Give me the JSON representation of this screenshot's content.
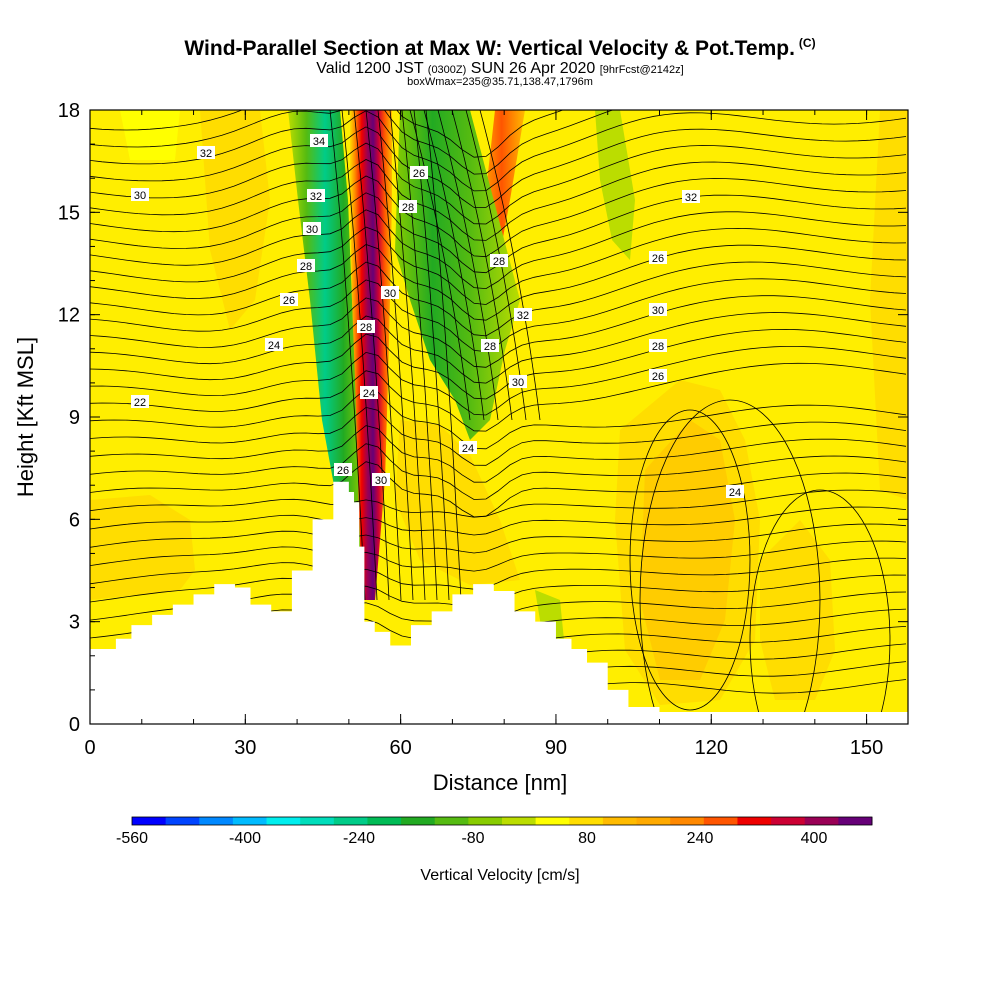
{
  "chart_data": {
    "type": "heatmap",
    "title": "Wind-Parallel Section at Max W: Vertical Velocity & Pot.Temp.",
    "title_mark": "(C)",
    "subtitle_main": "Valid 1200 JST",
    "subtitle_utc": "(0300Z)",
    "subtitle_date": "SUN 26 Apr 2020",
    "subtitle_fcst": "[9hrFcst@2142z]",
    "subtitle2": "boxWmax=235@35.71,138.47,1796m",
    "xlabel": "Distance [nm]",
    "ylabel": "Height [Kft MSL]",
    "xlim": [
      0,
      158
    ],
    "ylim": [
      0,
      18
    ],
    "xticks": [
      "0",
      "30",
      "60",
      "90",
      "120",
      "150"
    ],
    "yticks": [
      "0",
      "3",
      "6",
      "9",
      "12",
      "15",
      "18"
    ],
    "colorbar": {
      "label": "Vertical Velocity [cm/s]",
      "tick_labels": [
        "-560",
        "-400",
        "-240",
        "-80",
        "80",
        "240",
        "400"
      ],
      "colors": [
        "#0000ff",
        "#0044ff",
        "#0088ff",
        "#00bbff",
        "#00eeee",
        "#00ddbb",
        "#00cc88",
        "#00bb55",
        "#22aa22",
        "#55bb11",
        "#88cc00",
        "#bbdd00",
        "#ffff00",
        "#ffdd00",
        "#ffbb00",
        "#ffaa00",
        "#ff8800",
        "#ff5500",
        "#ee0000",
        "#cc0033",
        "#990055",
        "#660077"
      ]
    },
    "theta_contour_labels": [
      "32",
      "30",
      "22",
      "24",
      "26",
      "28",
      "34",
      "32",
      "30",
      "28",
      "26",
      "30",
      "28",
      "24",
      "26",
      "30",
      "28",
      "32",
      "28",
      "30",
      "24",
      "26",
      "32",
      "30",
      "28",
      "26",
      "24",
      "22"
    ],
    "terrain_kft": [
      [
        0,
        2.2
      ],
      [
        5,
        2.5
      ],
      [
        8,
        2.9
      ],
      [
        12,
        3.2
      ],
      [
        16,
        3.5
      ],
      [
        20,
        3.8
      ],
      [
        24,
        4.1
      ],
      [
        28,
        4.0
      ],
      [
        31,
        3.5
      ],
      [
        35,
        3.3
      ],
      [
        39,
        4.5
      ],
      [
        43,
        6.0
      ],
      [
        47,
        7.1
      ],
      [
        50,
        6.8
      ],
      [
        51,
        6.5
      ],
      [
        52,
        5.2
      ],
      [
        53,
        3.0
      ],
      [
        55,
        2.7
      ],
      [
        58,
        2.3
      ],
      [
        62,
        2.9
      ],
      [
        66,
        3.3
      ],
      [
        70,
        3.8
      ],
      [
        74,
        4.1
      ],
      [
        78,
        3.9
      ],
      [
        82,
        3.3
      ],
      [
        86,
        3.0
      ],
      [
        90,
        2.5
      ],
      [
        93,
        2.2
      ],
      [
        96,
        1.8
      ],
      [
        100,
        1.0
      ],
      [
        104,
        0.5
      ],
      [
        110,
        0.35
      ],
      [
        158,
        0.35
      ]
    ]
  }
}
